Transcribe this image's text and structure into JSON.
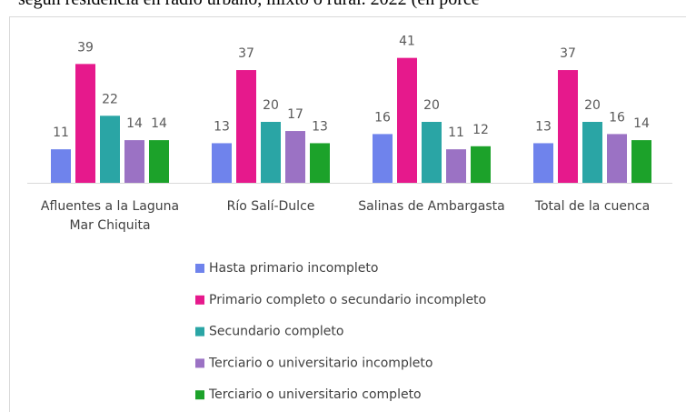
{
  "chart_data": {
    "type": "bar",
    "title": "según residencia en radio urbano, mixto o rural. 2022 (en porce",
    "categories": [
      "Afluentes a la Laguna Mar Chiquita",
      "Río Salí-Dulce",
      "Salinas de Ambargasta",
      "Total de la cuenca"
    ],
    "series": [
      {
        "name": "Hasta primario incompleto",
        "color": "#6f83ec",
        "values": [
          11,
          13,
          16,
          13
        ]
      },
      {
        "name": "Primario completo o secundario incompleto",
        "color": "#e6198c",
        "values": [
          39,
          37,
          41,
          37
        ]
      },
      {
        "name": "Secundario completo",
        "color": "#2aa5a5",
        "values": [
          22,
          20,
          20,
          20
        ]
      },
      {
        "name": "Terciario o universitario incompleto",
        "color": "#9b72c4",
        "values": [
          14,
          17,
          11,
          16
        ]
      },
      {
        "name": "Terciario o universitario completo",
        "color": "#1ca22a",
        "values": [
          14,
          13,
          12,
          14
        ]
      }
    ],
    "legend": "bottom"
  }
}
